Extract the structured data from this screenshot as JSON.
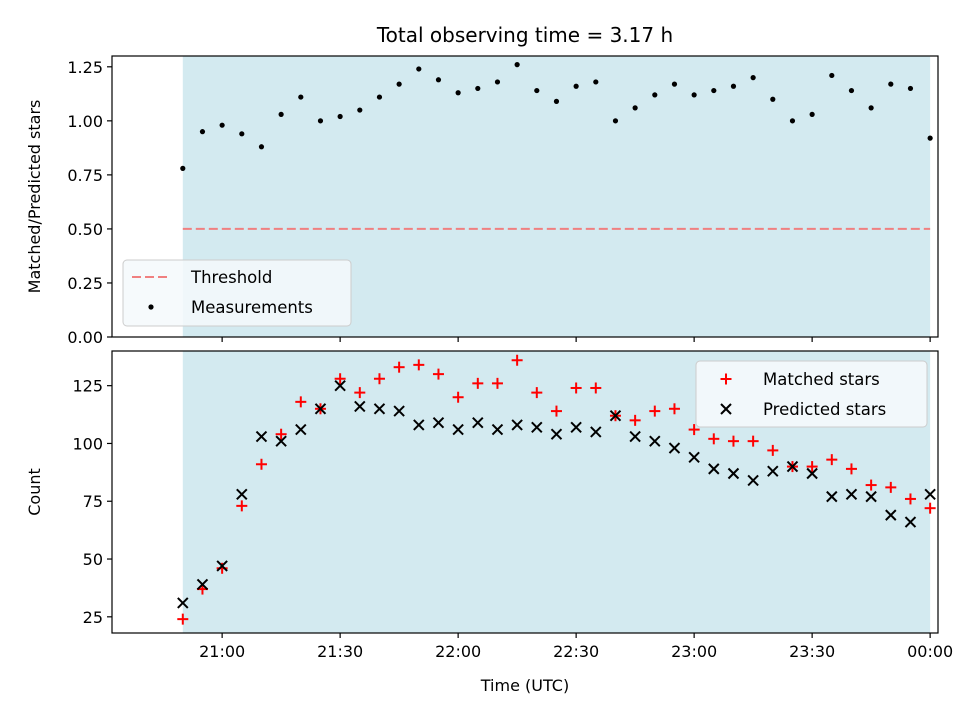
{
  "colors": {
    "span": "#d3eaf0",
    "threshold": "#f08080",
    "measurements": "#000000",
    "matched": "#ff0000",
    "predicted": "#000000",
    "legend_bg": "#f5f9fc",
    "legend_border": "#cccccc"
  },
  "chart_data": [
    {
      "type": "scatter",
      "title": "Total observing time = 3.17 h",
      "ylabel": "Matched/Predicted stars",
      "xlabel": "",
      "x_unit": "minutes after 20:00 UTC",
      "xlim": [
        1232,
        1442
      ],
      "ylim": [
        0,
        1.3
      ],
      "yticks": [
        0,
        0.25,
        0.5,
        0.75,
        1.0,
        1.25
      ],
      "ytick_labels": [
        "0.00",
        "0.25",
        "0.50",
        "0.75",
        "1.00",
        "1.25"
      ],
      "observing_span": [
        "20:50",
        "00:00"
      ],
      "threshold": {
        "name": "Threshold",
        "value": 0.5
      },
      "legend_position": "lower-left",
      "series": [
        {
          "name": "Measurements",
          "marker": "dot",
          "x": [
            "20:50",
            "20:55",
            "21:00",
            "21:05",
            "21:10",
            "21:15",
            "21:20",
            "21:25",
            "21:30",
            "21:35",
            "21:40",
            "21:45",
            "21:50",
            "21:55",
            "22:00",
            "22:05",
            "22:10",
            "22:15",
            "22:20",
            "22:25",
            "22:30",
            "22:35",
            "22:40",
            "22:45",
            "22:50",
            "22:55",
            "23:00",
            "23:05",
            "23:10",
            "23:15",
            "23:20",
            "23:25",
            "23:30",
            "23:35",
            "23:40",
            "23:45",
            "23:50",
            "23:55",
            "00:00"
          ],
          "y": [
            0.78,
            0.95,
            0.98,
            0.94,
            0.88,
            1.03,
            1.11,
            1.0,
            1.02,
            1.05,
            1.11,
            1.17,
            1.24,
            1.19,
            1.13,
            1.15,
            1.18,
            1.26,
            1.14,
            1.09,
            1.16,
            1.18,
            1.0,
            1.06,
            1.12,
            1.17,
            1.12,
            1.14,
            1.16,
            1.2,
            1.1,
            1.0,
            1.03,
            1.21,
            1.14,
            1.06,
            1.17,
            1.15,
            0.92
          ]
        }
      ]
    },
    {
      "type": "scatter",
      "title": "",
      "ylabel": "Count",
      "xlabel": "Time (UTC)",
      "xlim": [
        1232,
        1442
      ],
      "ylim": [
        18,
        140
      ],
      "yticks": [
        25,
        50,
        75,
        100,
        125
      ],
      "ytick_labels": [
        "25",
        "50",
        "75",
        "100",
        "125"
      ],
      "xticks": [
        "21:00",
        "21:30",
        "22:00",
        "22:30",
        "23:00",
        "23:30",
        "00:00"
      ],
      "observing_span": [
        "20:50",
        "00:00"
      ],
      "legend_position": "upper-right",
      "series": [
        {
          "name": "Matched stars",
          "marker": "plus",
          "x": [
            "20:50",
            "20:55",
            "21:00",
            "21:05",
            "21:10",
            "21:15",
            "21:20",
            "21:25",
            "21:30",
            "21:35",
            "21:40",
            "21:45",
            "21:50",
            "21:55",
            "22:00",
            "22:05",
            "22:10",
            "22:15",
            "22:20",
            "22:25",
            "22:30",
            "22:35",
            "22:40",
            "22:45",
            "22:50",
            "22:55",
            "23:00",
            "23:05",
            "23:10",
            "23:15",
            "23:20",
            "23:25",
            "23:30",
            "23:35",
            "23:40",
            "23:45",
            "23:50",
            "23:55",
            "00:00"
          ],
          "y": [
            24,
            37,
            46,
            73,
            91,
            104,
            118,
            115,
            128,
            122,
            128,
            133,
            134,
            130,
            120,
            126,
            126,
            136,
            122,
            114,
            124,
            124,
            112,
            110,
            114,
            115,
            106,
            102,
            101,
            101,
            97,
            90,
            90,
            93,
            89,
            82,
            81,
            76,
            72
          ]
        },
        {
          "name": "Predicted stars",
          "marker": "x",
          "x": [
            "20:50",
            "20:55",
            "21:00",
            "21:05",
            "21:10",
            "21:15",
            "21:20",
            "21:25",
            "21:30",
            "21:35",
            "21:40",
            "21:45",
            "21:50",
            "21:55",
            "22:00",
            "22:05",
            "22:10",
            "22:15",
            "22:20",
            "22:25",
            "22:30",
            "22:35",
            "22:40",
            "22:45",
            "22:50",
            "22:55",
            "23:00",
            "23:05",
            "23:10",
            "23:15",
            "23:20",
            "23:25",
            "23:30",
            "23:35",
            "23:40",
            "23:45",
            "23:50",
            "23:55",
            "00:00"
          ],
          "y": [
            31,
            39,
            47,
            78,
            103,
            101,
            106,
            115,
            125,
            116,
            115,
            114,
            108,
            109,
            106,
            109,
            106,
            108,
            107,
            104,
            107,
            105,
            112,
            103,
            101,
            98,
            94,
            89,
            87,
            84,
            88,
            90,
            87,
            77,
            78,
            77,
            69,
            66,
            78
          ]
        }
      ]
    }
  ]
}
